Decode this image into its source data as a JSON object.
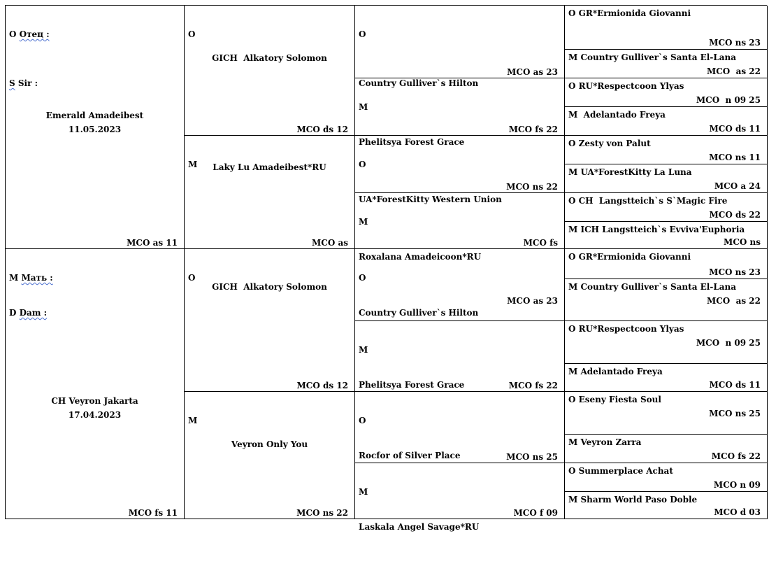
{
  "sire": {
    "sex_label": "O",
    "label_ru": "Отец :",
    "code_letter": "S",
    "label_en": "Sir :",
    "name": "Emerald Amadeibest",
    "date": "11.05.2023",
    "code": "MCO as 11"
  },
  "dam": {
    "sex_label": "M",
    "label_ru": "Мать :",
    "code_letter": "D",
    "label_en": "Dam :",
    "name": "CH Veyron Jakarta",
    "date": "17.04.2023",
    "code": "MCO fs 11"
  },
  "gen2": [
    {
      "sex": "O",
      "name": "GICH  Alkatory Solomon",
      "code": "MCO ds 12"
    },
    {
      "sex": "M",
      "name": "Laky Lu Amadeibest*RU",
      "code": "MCO as"
    },
    {
      "sex": "O",
      "name": "GICH  Alkatory Solomon",
      "code": "MCO ds 12"
    },
    {
      "sex": "M",
      "name": "Veyron Only You",
      "code": "MCO ns 22"
    }
  ],
  "gen3": [
    {
      "sex": "O",
      "name": "Country Gulliver`s Hilton",
      "code": "MCO as 23"
    },
    {
      "sex": "M",
      "name": "Phelitsya Forest Grace",
      "code": "MCO fs 22"
    },
    {
      "sex": "O",
      "name": "UA*ForestKitty Western Union",
      "code": "MCO ns 22"
    },
    {
      "sex": "M",
      "name": "Roxalana Amadeicoon*RU",
      "code": "MCO fs"
    },
    {
      "sex": "O",
      "name": "Country Gulliver`s Hilton",
      "code": "MCO as 23"
    },
    {
      "sex": "M",
      "name": "Phelitsya Forest Grace",
      "code": "MCO fs 22"
    },
    {
      "sex": "O",
      "name": "Rocfor of Silver Place",
      "code": "MCO ns 25"
    },
    {
      "sex": "M",
      "name": "Laskala Angel Savage*RU",
      "code": "MCO f 09"
    }
  ],
  "gen4": [
    {
      "name": "O GR*Ermionida Giovanni",
      "code": "MCO ns 23"
    },
    {
      "name": "M Country Gulliver`s Santa El-Lana",
      "code": "MCO  as 22"
    },
    {
      "name": "O RU*Respectcoon Ylyas",
      "code": "MCO  n 09 25"
    },
    {
      "name": "M  Adelantado Freya",
      "code": "MCO ds 11"
    },
    {
      "name": "O Zesty von Palut",
      "code": "MCO ns 11"
    },
    {
      "name": "M UA*ForestKitty La Luna",
      "code": "MCO a 24"
    },
    {
      "name": "O CH  Langstteich`s S`Magic Fire",
      "code": "MCO ds 22"
    },
    {
      "name": "M ICH Langstteich`s Evviva'Euphoria",
      "code": "MCO ns"
    },
    {
      "name": "O GR*Ermionida Giovanni",
      "code": "MCO ns 23"
    },
    {
      "name": "M Country Gulliver`s Santa El-Lana",
      "code": "MCO  as 22"
    },
    {
      "name": "O RU*Respectcoon Ylyas",
      "code": "MCO  n 09 25"
    },
    {
      "name": "M Adelantado Freya",
      "code": "MCO ds 11"
    },
    {
      "name": "O Eseny Fiesta Soul",
      "code": "MCO ns 25"
    },
    {
      "name": "M Veyron Zarra",
      "code": "MCO fs 22"
    },
    {
      "name": "O Summerplace Achat",
      "code": "MCO n 09"
    },
    {
      "name": "M Sharm World Paso Doble",
      "code": "MCO d 03"
    }
  ]
}
